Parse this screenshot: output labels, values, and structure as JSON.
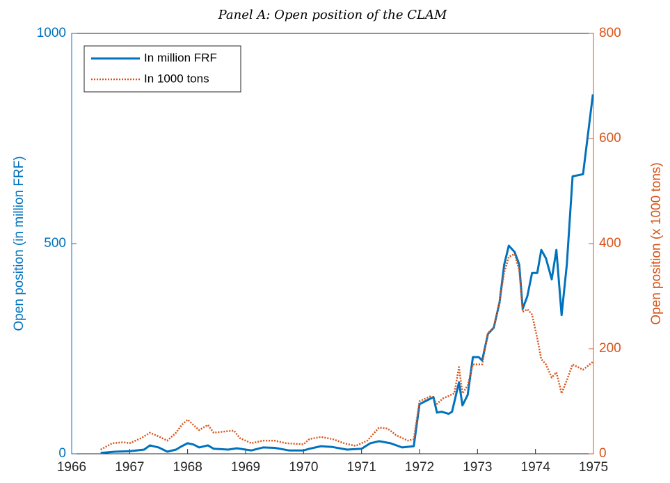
{
  "chart_data": {
    "type": "line",
    "title": "Panel A: Open position of the CLAM",
    "ylabel": "Open position (in million FRF)",
    "y2label": "Open position (x 1000 tons)",
    "xlim": [
      1966,
      1975
    ],
    "xticks": [
      1966,
      1967,
      1968,
      1969,
      1970,
      1971,
      1972,
      1973,
      1974,
      1975
    ],
    "ylim": [
      0,
      1000
    ],
    "yticks": [
      0,
      500,
      1000
    ],
    "y2lim": [
      0,
      800
    ],
    "y2ticks": [
      0,
      200,
      400,
      600,
      800
    ],
    "legend": "upper left",
    "series": [
      {
        "name": "In million FRF",
        "color": "#0072BD",
        "axis": "y",
        "x": [
          1966.5,
          1966.75,
          1967.0,
          1967.25,
          1967.35,
          1967.5,
          1967.65,
          1967.8,
          1967.9,
          1968.0,
          1968.1,
          1968.2,
          1968.35,
          1968.45,
          1968.7,
          1968.85,
          1969.0,
          1969.1,
          1969.3,
          1969.5,
          1969.75,
          1970.0,
          1970.1,
          1970.3,
          1970.5,
          1970.75,
          1971.0,
          1971.15,
          1971.3,
          1971.5,
          1971.7,
          1971.9,
          1972.0,
          1972.1,
          1972.24,
          1972.3,
          1972.38,
          1972.5,
          1972.56,
          1972.68,
          1972.74,
          1972.83,
          1972.92,
          1973.02,
          1973.08,
          1973.18,
          1973.28,
          1973.38,
          1973.46,
          1973.54,
          1973.64,
          1973.72,
          1973.78,
          1973.86,
          1973.94,
          1974.03,
          1974.1,
          1974.18,
          1974.28,
          1974.36,
          1974.45,
          1974.54,
          1974.64,
          1974.82,
          1974.99
        ],
        "values": [
          2,
          5,
          6,
          10,
          20,
          15,
          5,
          10,
          18,
          25,
          22,
          15,
          20,
          12,
          10,
          13,
          10,
          8,
          15,
          14,
          8,
          8,
          12,
          18,
          16,
          10,
          12,
          25,
          30,
          25,
          15,
          18,
          118,
          125,
          135,
          98,
          100,
          95,
          100,
          170,
          115,
          140,
          230,
          230,
          222,
          285,
          300,
          360,
          450,
          495,
          480,
          450,
          345,
          375,
          430,
          430,
          485,
          465,
          415,
          485,
          330,
          450,
          660,
          665,
          855
        ]
      },
      {
        "name": "In 1000 tons",
        "color": "#D95319",
        "axis": "y2",
        "x": [
          1966.5,
          1966.7,
          1966.9,
          1967.0,
          1967.2,
          1967.35,
          1967.5,
          1967.65,
          1967.8,
          1967.9,
          1968.0,
          1968.1,
          1968.2,
          1968.35,
          1968.45,
          1968.6,
          1968.8,
          1968.9,
          1969.1,
          1969.3,
          1969.5,
          1969.7,
          1970.0,
          1970.1,
          1970.3,
          1970.5,
          1970.7,
          1970.9,
          1971.1,
          1971.3,
          1971.45,
          1971.6,
          1971.8,
          1971.9,
          1972.0,
          1972.1,
          1972.2,
          1972.3,
          1972.4,
          1972.5,
          1972.6,
          1972.68,
          1972.74,
          1972.83,
          1972.92,
          1973.08,
          1973.18,
          1973.28,
          1973.38,
          1973.46,
          1973.54,
          1973.64,
          1973.72,
          1973.78,
          1973.86,
          1973.94,
          1974.03,
          1974.1,
          1974.18,
          1974.28,
          1974.36,
          1974.45,
          1974.54,
          1974.64,
          1974.82,
          1974.99
        ],
        "values": [
          8,
          20,
          22,
          20,
          30,
          40,
          33,
          25,
          40,
          55,
          65,
          55,
          45,
          55,
          40,
          42,
          44,
          30,
          20,
          25,
          25,
          20,
          18,
          28,
          32,
          28,
          20,
          15,
          25,
          50,
          48,
          35,
          25,
          28,
          100,
          105,
          110,
          95,
          105,
          110,
          115,
          165,
          115,
          130,
          170,
          170,
          230,
          240,
          290,
          345,
          375,
          380,
          350,
          270,
          275,
          265,
          220,
          180,
          170,
          145,
          155,
          115,
          140,
          170,
          160,
          175
        ]
      }
    ]
  }
}
